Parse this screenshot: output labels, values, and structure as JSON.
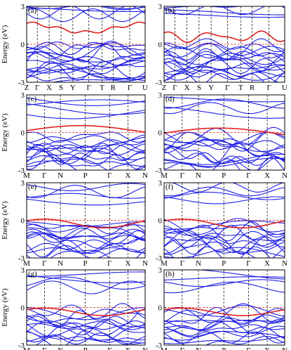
{
  "figure": {
    "ylabel": "Energy (eV)",
    "colors": {
      "band": "#1f1fe6",
      "highlight": "#e02020",
      "fermi": "#e02020",
      "frame": "#000000",
      "kline": "#000000"
    }
  },
  "panels": [
    {
      "label": "(a)",
      "yticks": [
        "-3",
        "0",
        "3"
      ],
      "ylim": [
        -3,
        3
      ],
      "show_ylabel": false,
      "kpoints": [
        "Z",
        "Γ",
        "X",
        "S",
        "Y",
        "Γ",
        "T",
        "R",
        "Γ",
        "U"
      ]
    },
    {
      "label": "(b)",
      "yticks": [
        "-3",
        "0",
        "3"
      ],
      "ylim": [
        -3,
        3
      ],
      "show_ylabel": false,
      "kpoints": [
        "Z",
        "Γ",
        "X",
        "S",
        "Y",
        "Γ",
        "T",
        "R",
        "Γ",
        "U"
      ]
    },
    {
      "label": "(c)",
      "yticks": [
        "-3",
        "0",
        "3"
      ],
      "ylim": [
        -3,
        3
      ],
      "show_ylabel": true,
      "kpoints": [
        "M",
        "Γ",
        "N",
        "P",
        "Γ",
        "X",
        "N"
      ]
    },
    {
      "label": "(d)",
      "yticks": [
        "-3",
        "0",
        "3"
      ],
      "ylim": [
        -3,
        3
      ],
      "show_ylabel": false,
      "kpoints": [
        "M",
        "Γ",
        "N",
        "P",
        "Γ",
        "X",
        "N"
      ]
    },
    {
      "label": "(e)",
      "yticks": [
        "-3",
        "0",
        "3"
      ],
      "ylim": [
        -3,
        3
      ],
      "show_ylabel": true,
      "kpoints": [
        "M",
        "Γ",
        "N",
        "P",
        "Γ",
        "X",
        "N"
      ]
    },
    {
      "label": "(f)",
      "yticks": [
        "-3",
        "0",
        "3"
      ],
      "ylim": [
        -3,
        3
      ],
      "show_ylabel": false,
      "kpoints": [
        "M",
        "Γ",
        "N",
        "P",
        "Γ",
        "X",
        "N"
      ]
    },
    {
      "label": "(g)",
      "yticks": [
        "-3",
        "0",
        "3"
      ],
      "ylim": [
        -3,
        3
      ],
      "show_ylabel": true,
      "kpoints": [
        "M",
        "Γ",
        "N",
        "P",
        "Γ",
        "X",
        "N"
      ]
    },
    {
      "label": "(h)",
      "yticks": [
        "-3",
        "0",
        "3"
      ],
      "ylim": [
        -3,
        3
      ],
      "show_ylabel": false,
      "kpoints": [
        "M",
        "Γ",
        "N",
        "P",
        "Γ",
        "X",
        "N"
      ]
    }
  ]
}
